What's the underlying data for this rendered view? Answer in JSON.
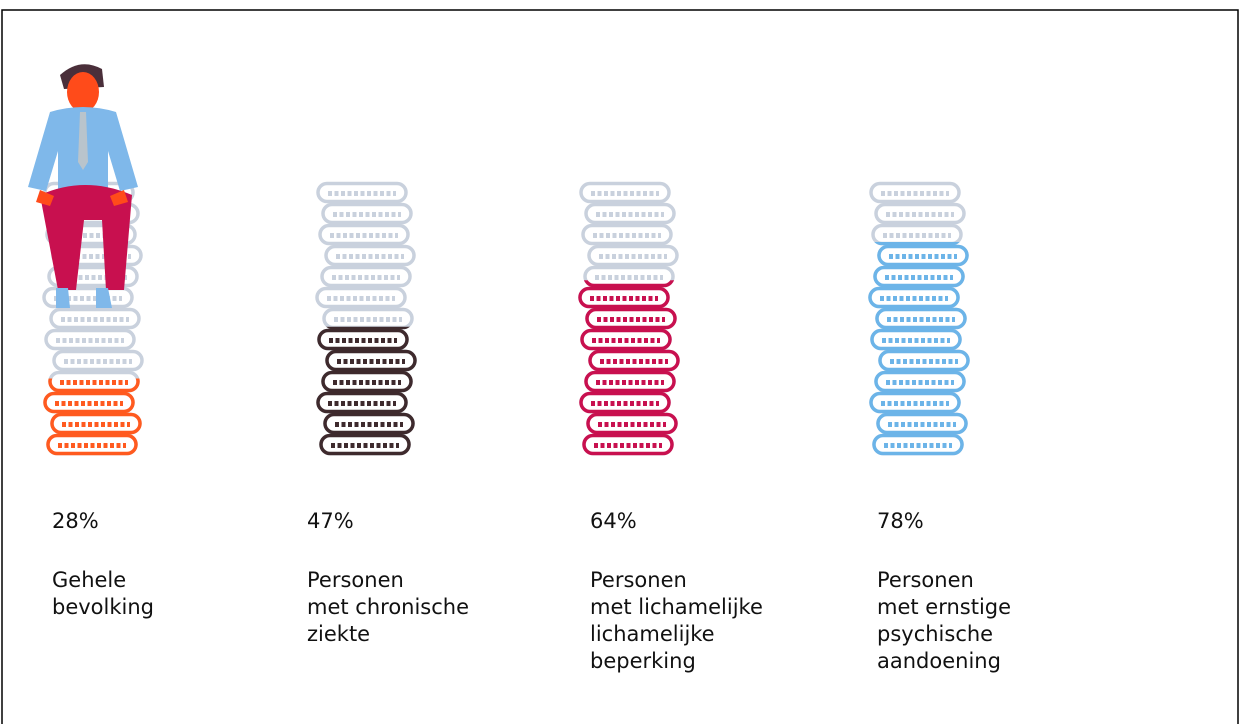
{
  "chart_data": {
    "type": "coin-stack",
    "categories": [
      "Gehele\nbevolking",
      "Personen\nmet chronische\nziekte",
      "Personen\nmet lichamelijke\nlichamelijke\nbeperking",
      "Personen\nmet ernstige\npsychische\naandoening"
    ],
    "values": [
      28,
      47,
      64,
      78
    ],
    "value_labels": [
      "28%",
      "47%",
      "64%",
      "78%"
    ],
    "colors": [
      "#ff5a1f",
      "#3e2a2d",
      "#c8104f",
      "#6cb4e8"
    ],
    "ylim": [
      0,
      100
    ]
  }
}
